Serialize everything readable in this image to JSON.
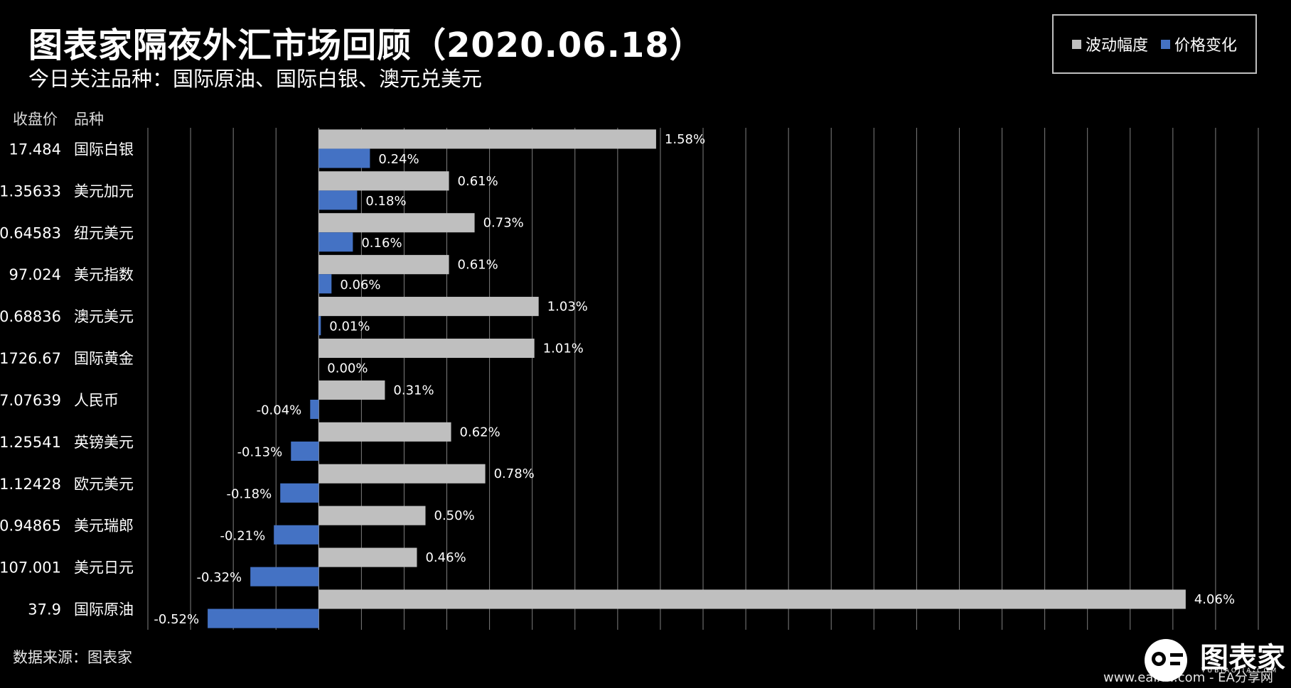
{
  "header": {
    "title": "图表家隔夜外汇市场回顾（2020.06.18）",
    "subtitle": "今日关注品种：国际原油、国际白银、澳元兑美元"
  },
  "columns": {
    "price": "收盘价",
    "name": "品种"
  },
  "source": "数据来源：图表家",
  "logo": {
    "text": "图表家",
    "sub": "TUBIAOJIA.COM"
  },
  "watermark": "www.eaixw.com - EA分享网",
  "colors": {
    "background": "#000000",
    "volatility": "#bfbfbf",
    "change": "#4472c4",
    "grid": "#7f7f7f"
  },
  "chart_data": {
    "type": "bar",
    "orientation": "horizontal",
    "categories": [
      "国际白银",
      "美元加元",
      "纽元美元",
      "美元指数",
      "澳元美元",
      "国际黄金",
      "人民币",
      "英镑美元",
      "欧元美元",
      "美元瑞郎",
      "美元日元",
      "国际原油"
    ],
    "closing_prices": [
      "17.484",
      "1.35633",
      "0.64583",
      "97.024",
      "0.68836",
      "1726.67",
      "7.07639",
      "1.25541",
      "1.12428",
      "0.94865",
      "107.001",
      "37.9"
    ],
    "series": [
      {
        "name": "波动幅度",
        "values": [
          1.58,
          0.61,
          0.73,
          0.61,
          1.03,
          1.01,
          0.31,
          0.62,
          0.78,
          0.5,
          0.46,
          4.06
        ],
        "labels": [
          "1.58%",
          "0.61%",
          "0.73%",
          "0.61%",
          "1.03%",
          "1.01%",
          "0.31%",
          "0.62%",
          "0.78%",
          "0.50%",
          "0.46%",
          "4.06%"
        ]
      },
      {
        "name": "价格变化",
        "values": [
          0.24,
          0.18,
          0.16,
          0.06,
          0.01,
          0.0,
          -0.04,
          -0.13,
          -0.18,
          -0.21,
          -0.32,
          -0.52
        ],
        "labels": [
          "0.24%",
          "0.18%",
          "0.16%",
          "0.06%",
          "0.01%",
          "0.00%",
          "-0.04%",
          "-0.13%",
          "-0.18%",
          "-0.21%",
          "-0.32%",
          "-0.52%"
        ]
      }
    ],
    "xlim": [
      -0.8,
      4.4
    ],
    "grid": true,
    "legend": "top-right"
  }
}
